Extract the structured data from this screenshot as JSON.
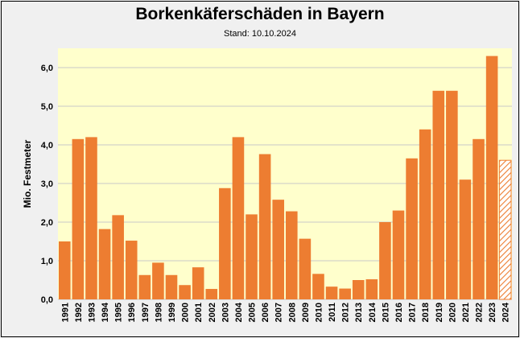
{
  "chart_data": {
    "type": "bar",
    "title": "Borkenkäferschäden in Bayern",
    "subtitle": "Stand: 10.10.2024",
    "xlabel": "",
    "ylabel": "Mio. Festmeter",
    "ylim": [
      0,
      6.5
    ],
    "yticks": [
      0,
      1,
      2,
      3,
      4,
      5,
      6
    ],
    "ytick_labels": [
      "0,0",
      "1,0",
      "2,0",
      "3,0",
      "4,0",
      "5,0",
      "6,0"
    ],
    "grid": true,
    "categories": [
      "1991",
      "1992",
      "1993",
      "1994",
      "1995",
      "1996",
      "1997",
      "1998",
      "1999",
      "2000",
      "2001",
      "2002",
      "2003",
      "2004",
      "2005",
      "2006",
      "2007",
      "2008",
      "2009",
      "2010",
      "2011",
      "2012",
      "2013",
      "2014",
      "2015",
      "2016",
      "2017",
      "2018",
      "2019",
      "2020",
      "2021",
      "2022",
      "2023",
      "2024"
    ],
    "values": [
      1.5,
      4.15,
      4.2,
      1.82,
      2.18,
      1.52,
      0.63,
      0.95,
      0.63,
      0.37,
      0.83,
      0.27,
      2.88,
      4.2,
      2.2,
      3.76,
      2.58,
      2.28,
      1.57,
      0.66,
      0.33,
      0.28,
      0.5,
      0.52,
      2.0,
      2.3,
      3.65,
      4.4,
      5.4,
      5.4,
      3.1,
      4.15,
      6.3,
      3.6
    ],
    "hatched_categories": [
      "2024"
    ],
    "colors": {
      "bar": "#ed7d31",
      "plot_bg": "#ffffcc",
      "page_bg": "#f0f0f0",
      "grid": "#c8c8c8"
    }
  }
}
